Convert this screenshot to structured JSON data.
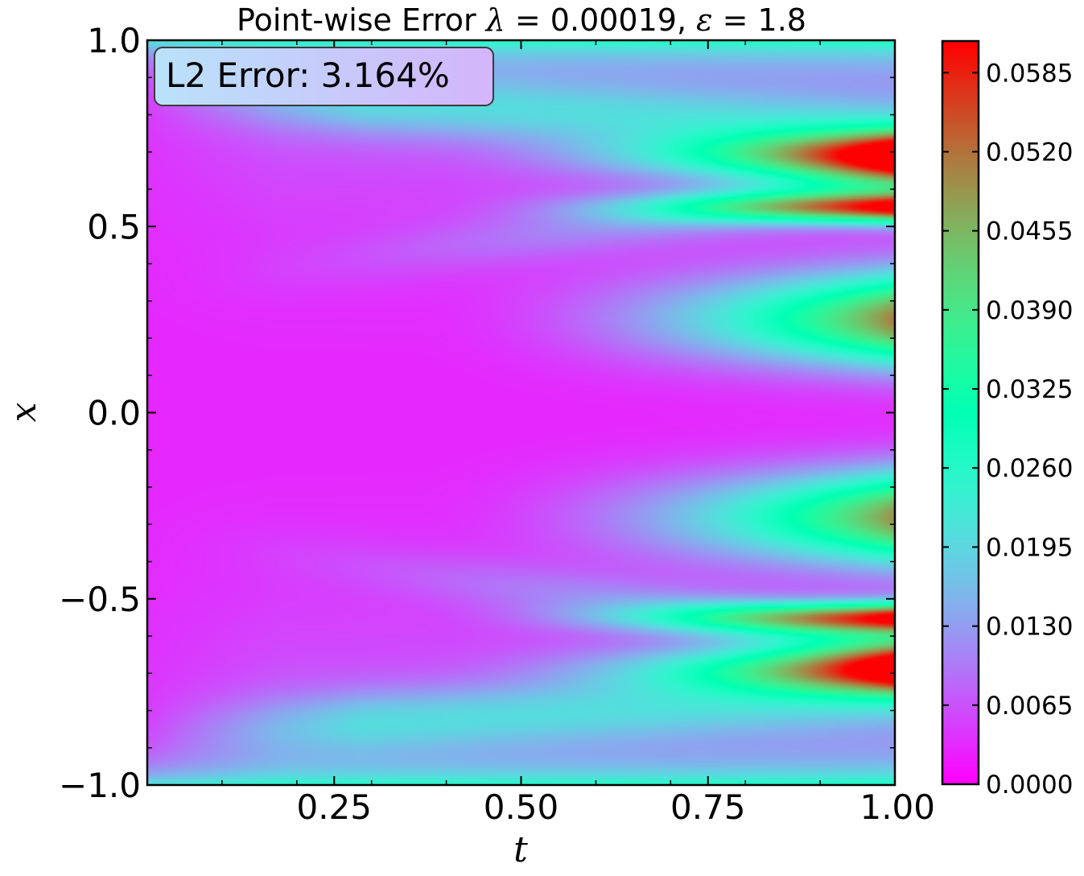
{
  "chart_data": {
    "type": "heatmap",
    "title_prefix": "Point-wise Error ",
    "title_lambda_sym": "λ",
    "title_lambda_val": " = 0.00019, ",
    "title_eps_sym": "ε",
    "title_eps_val": " = 1.8",
    "xlabel": "t",
    "ylabel": "x",
    "xlim": [
      0.0,
      1.0
    ],
    "ylim": [
      -1.0,
      1.0
    ],
    "x_ticks": [
      0.25,
      0.5,
      0.75,
      1.0
    ],
    "x_tick_labels": [
      "0.25",
      "0.50",
      "0.75",
      "1.00"
    ],
    "y_ticks": [
      -1.0,
      -0.5,
      0.0,
      0.5,
      1.0
    ],
    "y_tick_labels": [
      "−1.0",
      "−0.5",
      "0.0",
      "0.5",
      "1.0"
    ],
    "annotation": "L2 Error: 3.164%",
    "colormap": "rainbow",
    "colorbar": {
      "min": 0.0,
      "max": 0.0611,
      "ticks": [
        0.0,
        0.0065,
        0.013,
        0.0195,
        0.026,
        0.0325,
        0.039,
        0.0455,
        0.052,
        0.0585
      ],
      "tick_labels": [
        "0.0000",
        "0.0065",
        "0.0130",
        "0.0195",
        "0.0260",
        "0.0325",
        "0.0390",
        "0.0455",
        "0.0520",
        "0.0585"
      ]
    },
    "error_peaks_at_t1": [
      {
        "x": 0.69,
        "value": 0.061
      },
      {
        "x": 0.55,
        "value": 0.055
      },
      {
        "x": 0.25,
        "value": 0.048
      },
      {
        "x": -0.28,
        "value": 0.046
      },
      {
        "x": -0.55,
        "value": 0.054
      },
      {
        "x": -0.69,
        "value": 0.058
      },
      {
        "x": 0.95,
        "value": 0.017
      },
      {
        "x": -0.95,
        "value": 0.017
      }
    ]
  }
}
